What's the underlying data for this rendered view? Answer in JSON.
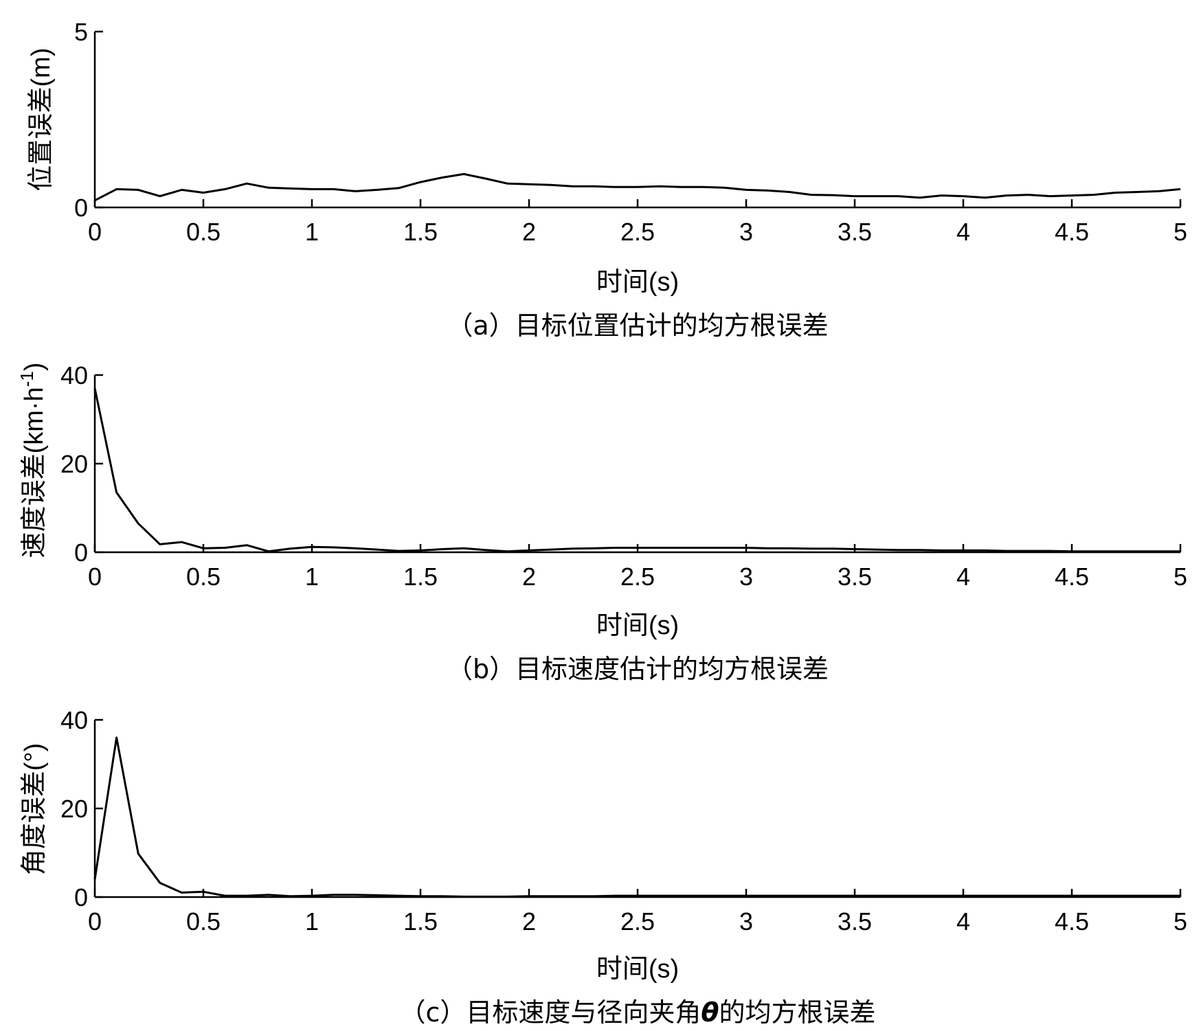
{
  "chart_data": [
    {
      "type": "line",
      "xlabel": "时间(s)",
      "ylabel": "位置误差(m)",
      "caption": "（a）目标位置估计的均方根误差",
      "xlim": [
        0,
        5
      ],
      "ylim": [
        0,
        5
      ],
      "xticks": [
        "0",
        "0.5",
        "1",
        "1.5",
        "2",
        "2.5",
        "3",
        "3.5",
        "4",
        "4.5",
        "5"
      ],
      "yticks": [
        "0",
        "5"
      ],
      "x": [
        0,
        0.1,
        0.2,
        0.3,
        0.4,
        0.5,
        0.6,
        0.7,
        0.8,
        0.9,
        1.0,
        1.1,
        1.2,
        1.3,
        1.4,
        1.5,
        1.6,
        1.7,
        1.8,
        1.9,
        2.0,
        2.1,
        2.2,
        2.3,
        2.4,
        2.5,
        2.6,
        2.7,
        2.8,
        2.9,
        3.0,
        3.1,
        3.2,
        3.3,
        3.4,
        3.5,
        3.6,
        3.7,
        3.8,
        3.9,
        4.0,
        4.1,
        4.2,
        4.3,
        4.4,
        4.5,
        4.6,
        4.7,
        4.8,
        4.9,
        5.0
      ],
      "values": [
        0.2,
        0.52,
        0.5,
        0.32,
        0.5,
        0.42,
        0.52,
        0.68,
        0.56,
        0.54,
        0.52,
        0.52,
        0.46,
        0.5,
        0.55,
        0.72,
        0.85,
        0.95,
        0.82,
        0.68,
        0.66,
        0.64,
        0.6,
        0.6,
        0.58,
        0.58,
        0.6,
        0.58,
        0.58,
        0.56,
        0.5,
        0.48,
        0.44,
        0.36,
        0.35,
        0.32,
        0.32,
        0.32,
        0.28,
        0.34,
        0.32,
        0.28,
        0.34,
        0.36,
        0.32,
        0.34,
        0.36,
        0.42,
        0.44,
        0.46,
        0.52
      ]
    },
    {
      "type": "line",
      "xlabel": "时间(s)",
      "ylabel": "速度误差(km·h",
      "ylabel_sup": "-1",
      "ylabel_tail": ")",
      "caption": "（b）目标速度估计的均方根误差",
      "xlim": [
        0,
        5
      ],
      "ylim": [
        0,
        40
      ],
      "xticks": [
        "0",
        "0.5",
        "1",
        "1.5",
        "2",
        "2.5",
        "3",
        "3.5",
        "4",
        "4.5",
        "5"
      ],
      "yticks": [
        "0",
        "20",
        "40"
      ],
      "x": [
        0,
        0.1,
        0.2,
        0.3,
        0.4,
        0.5,
        0.6,
        0.7,
        0.8,
        0.9,
        1.0,
        1.1,
        1.2,
        1.3,
        1.4,
        1.5,
        1.6,
        1.7,
        1.8,
        1.9,
        2.0,
        2.1,
        2.2,
        2.3,
        2.4,
        2.5,
        2.6,
        2.7,
        2.8,
        2.9,
        3.0,
        3.1,
        3.2,
        3.3,
        3.4,
        3.5,
        3.6,
        3.7,
        3.8,
        3.9,
        4.0,
        4.1,
        4.2,
        4.3,
        4.4,
        4.5,
        4.6,
        4.7,
        4.8,
        4.9,
        5.0
      ],
      "values": [
        37,
        13.5,
        6.5,
        1.8,
        2.3,
        0.9,
        1.0,
        1.6,
        0.2,
        0.8,
        1.2,
        1.1,
        0.9,
        0.6,
        0.3,
        0.4,
        0.7,
        0.9,
        0.5,
        0.2,
        0.4,
        0.6,
        0.8,
        0.9,
        1.0,
        1.0,
        1.0,
        1.0,
        1.0,
        1.0,
        1.0,
        0.9,
        0.9,
        0.8,
        0.8,
        0.7,
        0.6,
        0.5,
        0.5,
        0.4,
        0.4,
        0.4,
        0.3,
        0.3,
        0.3,
        0.2,
        0.2,
        0.2,
        0.2,
        0.2,
        0.2
      ]
    },
    {
      "type": "line",
      "xlabel": "时间(s)",
      "ylabel": "角度误差(°)",
      "caption_prefix": "（c）目标速度与径向夹角",
      "caption_symbol": "θ",
      "caption_suffix": "的均方根误差",
      "xlim": [
        0,
        5
      ],
      "ylim": [
        0,
        40
      ],
      "xticks": [
        "0",
        "0.5",
        "1",
        "1.5",
        "2",
        "2.5",
        "3",
        "3.5",
        "4",
        "4.5",
        "5"
      ],
      "yticks": [
        "0",
        "20",
        "40"
      ],
      "x": [
        0,
        0.1,
        0.2,
        0.3,
        0.4,
        0.5,
        0.6,
        0.7,
        0.8,
        0.9,
        1.0,
        1.1,
        1.2,
        1.3,
        1.4,
        1.5,
        1.6,
        1.7,
        1.8,
        1.9,
        2.0,
        2.1,
        2.2,
        2.3,
        2.4,
        2.5,
        2.6,
        2.7,
        2.8,
        2.9,
        3.0,
        3.1,
        3.2,
        3.3,
        3.4,
        3.5,
        3.6,
        3.7,
        3.8,
        3.9,
        4.0,
        4.1,
        4.2,
        4.3,
        4.4,
        4.5,
        4.6,
        4.7,
        4.8,
        4.9,
        5.0
      ],
      "values": [
        4,
        36,
        9.8,
        3.2,
        1.0,
        1.2,
        0.3,
        0.3,
        0.5,
        0.2,
        0.3,
        0.5,
        0.5,
        0.4,
        0.3,
        0.2,
        0.2,
        0.1,
        0.1,
        0.1,
        0.2,
        0.2,
        0.2,
        0.2,
        0.3,
        0.3,
        0.3,
        0.3,
        0.3,
        0.3,
        0.3,
        0.3,
        0.3,
        0.3,
        0.3,
        0.3,
        0.3,
        0.3,
        0.3,
        0.3,
        0.3,
        0.3,
        0.3,
        0.3,
        0.3,
        0.3,
        0.3,
        0.3,
        0.3,
        0.3,
        0.3
      ]
    }
  ]
}
